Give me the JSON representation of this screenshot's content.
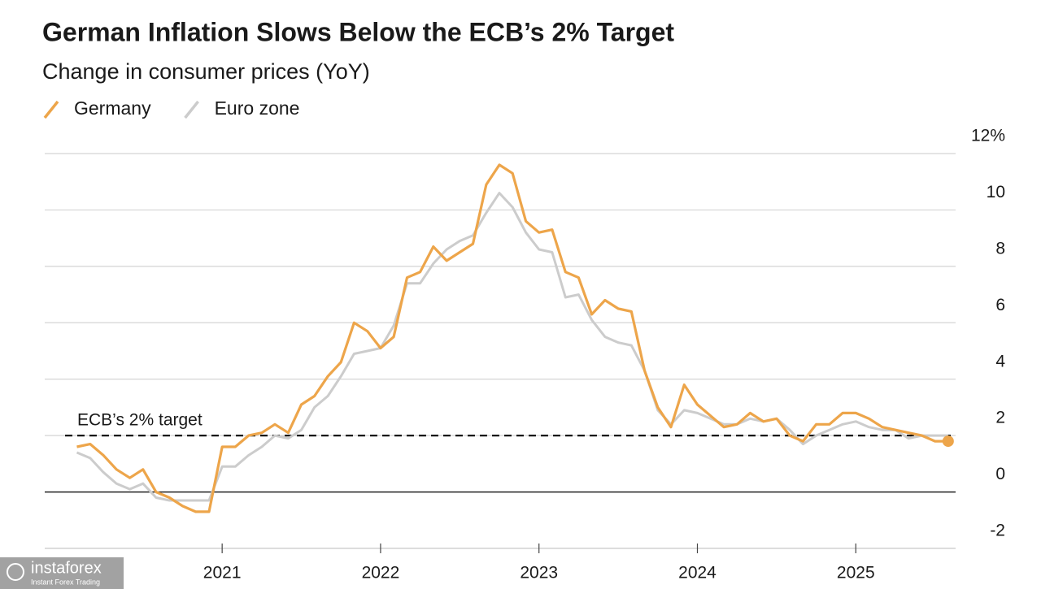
{
  "chart_data": {
    "type": "line",
    "title": "German Inflation Slows Below the ECB’s 2% Target",
    "subtitle": "Change in consumer prices (YoY)",
    "x": [
      2020.083,
      2020.167,
      2020.25,
      2020.333,
      2020.417,
      2020.5,
      2020.583,
      2020.667,
      2020.75,
      2020.833,
      2020.917,
      2021,
      2021.083,
      2021.167,
      2021.25,
      2021.333,
      2021.417,
      2021.5,
      2021.583,
      2021.667,
      2021.75,
      2021.833,
      2021.917,
      2022,
      2022.083,
      2022.167,
      2022.25,
      2022.333,
      2022.417,
      2022.5,
      2022.583,
      2022.667,
      2022.75,
      2022.833,
      2022.917,
      2023,
      2023.083,
      2023.167,
      2023.25,
      2023.333,
      2023.417,
      2023.5,
      2023.583,
      2023.667,
      2023.75,
      2023.833,
      2023.917,
      2024,
      2024.083,
      2024.167,
      2024.25,
      2024.333,
      2024.417,
      2024.5,
      2024.583,
      2024.667,
      2024.75,
      2024.833,
      2024.917,
      2025,
      2025.083,
      2025.167,
      2025.25,
      2025.333,
      2025.417,
      2025.5,
      2025.583
    ],
    "series": [
      {
        "name": "Germany",
        "color": "#eda54a",
        "values": [
          1.6,
          1.7,
          1.3,
          0.8,
          0.5,
          0.8,
          0.0,
          -0.2,
          -0.5,
          -0.7,
          -0.7,
          1.6,
          1.6,
          2.0,
          2.1,
          2.4,
          2.1,
          3.1,
          3.4,
          4.1,
          4.6,
          6.0,
          5.7,
          5.1,
          5.5,
          7.6,
          7.8,
          8.7,
          8.2,
          8.5,
          8.8,
          10.9,
          11.6,
          11.3,
          9.6,
          9.2,
          9.3,
          7.8,
          7.6,
          6.3,
          6.8,
          6.5,
          6.4,
          4.3,
          3.0,
          2.3,
          3.8,
          3.1,
          2.7,
          2.3,
          2.4,
          2.8,
          2.5,
          2.6,
          2.0,
          1.8,
          2.4,
          2.4,
          2.8,
          2.8,
          2.6,
          2.3,
          2.2,
          2.1,
          2.0,
          1.8,
          1.8
        ]
      },
      {
        "name": "Euro zone",
        "color": "#cccccc",
        "values": [
          1.4,
          1.2,
          0.7,
          0.3,
          0.1,
          0.3,
          -0.2,
          -0.3,
          -0.3,
          -0.3,
          -0.3,
          0.9,
          0.9,
          1.3,
          1.6,
          2.0,
          1.9,
          2.2,
          3.0,
          3.4,
          4.1,
          4.9,
          5.0,
          5.1,
          5.9,
          7.4,
          7.4,
          8.1,
          8.6,
          8.9,
          9.1,
          9.9,
          10.6,
          10.1,
          9.2,
          8.6,
          8.5,
          6.9,
          7.0,
          6.1,
          5.5,
          5.3,
          5.2,
          4.3,
          2.9,
          2.4,
          2.9,
          2.8,
          2.6,
          2.4,
          2.4,
          2.6,
          2.5,
          2.6,
          2.2,
          1.7,
          2.0,
          2.2,
          2.4,
          2.5,
          2.3,
          2.2,
          2.2,
          1.9,
          2.0,
          2.0,
          2.0
        ]
      }
    ],
    "target": {
      "label": "ECB’s 2% target",
      "value": 2
    },
    "xlim": [
      2019.88,
      2025.63
    ],
    "xticks": [
      2021,
      2022,
      2023,
      2024,
      2025
    ],
    "ylim": [
      -2,
      12
    ],
    "yticks": [
      -2,
      0,
      2,
      4,
      6,
      8,
      10,
      {
        "value": 12,
        "label": "12%"
      }
    ],
    "grid": true,
    "watermark": {
      "name": "instaforex",
      "tagline": "Instant Forex Trading"
    }
  }
}
